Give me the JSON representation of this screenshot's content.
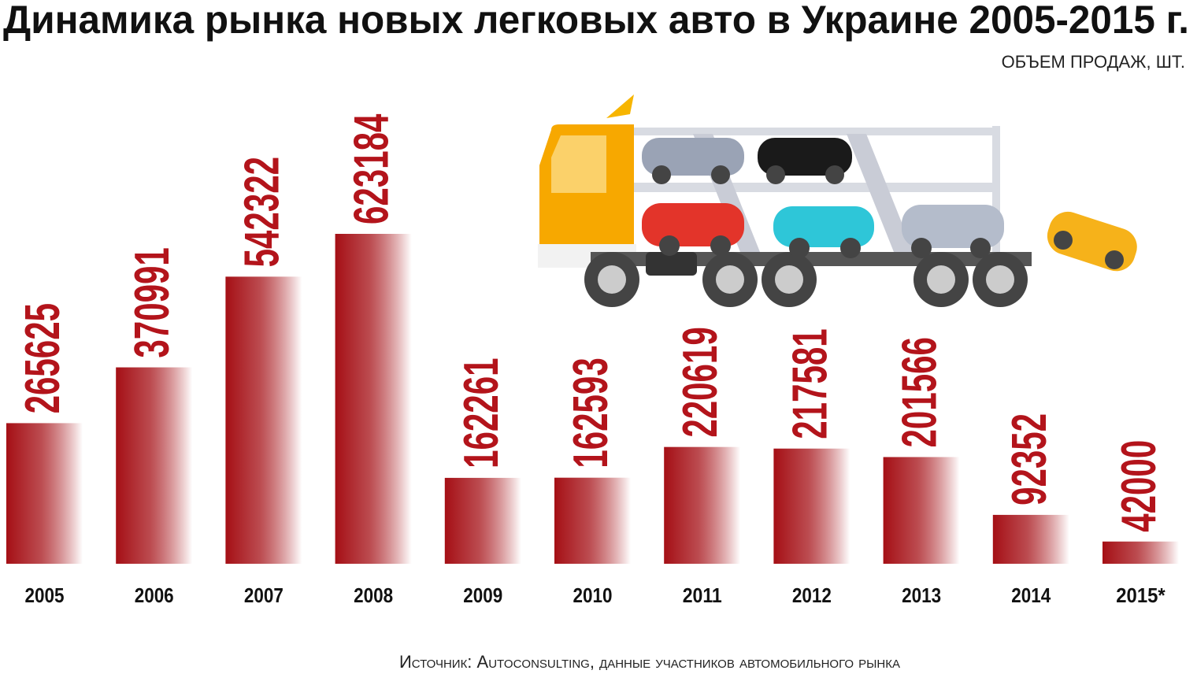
{
  "chart_data": {
    "type": "bar",
    "title": "Динамика рынка новых легковых авто в Украине 2005-2015 г.",
    "subtitle": "ОБЪЕМ ПРОДАЖ, ШТ.",
    "source": "Источник: Autoconsulting, данные участников автомобильного рынка",
    "categories": [
      "2005",
      "2006",
      "2007",
      "2008",
      "2009",
      "2010",
      "2011",
      "2012",
      "2013",
      "2014",
      "2015*"
    ],
    "values": [
      265625,
      370991,
      542322,
      623184,
      162261,
      162593,
      220619,
      217581,
      201566,
      92352,
      42000
    ],
    "color": "#a50f15"
  }
}
